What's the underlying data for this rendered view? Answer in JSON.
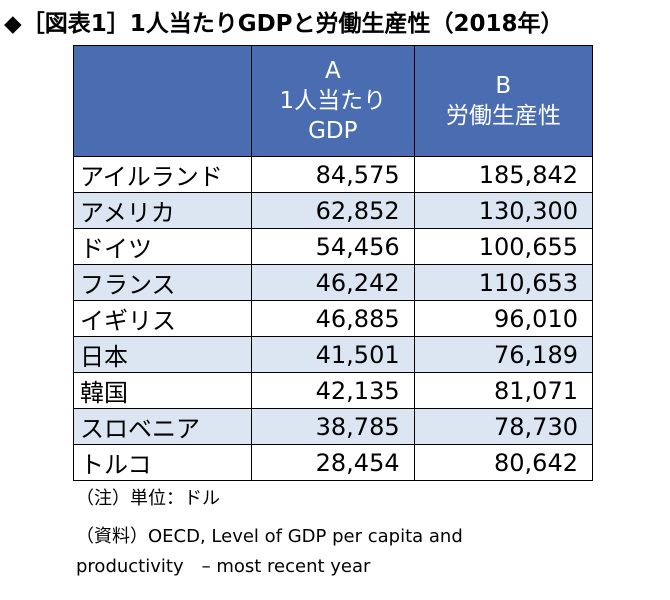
{
  "header": {
    "title": "◆［図表1］1人当たりGDPと労働生産性（2018年）"
  },
  "table": {
    "columns": [
      {
        "letter": "A",
        "label": [
          "1人当たり",
          "GDP"
        ]
      },
      {
        "letter": "B",
        "label": [
          "労働生産性"
        ]
      }
    ],
    "rows": [
      [
        "アイルランド",
        "84,575",
        "185,842"
      ],
      [
        "アメリカ",
        "62,852",
        "130,300"
      ],
      [
        "ドイツ",
        "54,456",
        "100,655"
      ],
      [
        "フランス",
        "46,242",
        "110,653"
      ],
      [
        "イギリス",
        "46,885",
        "96,010"
      ],
      [
        "日本",
        "41,501",
        "76,189"
      ],
      [
        "韓国",
        "42,135",
        "81,071"
      ],
      [
        "スロベニア",
        "38,785",
        "78,730"
      ],
      [
        "トルコ",
        "28,454",
        "80,642"
      ]
    ]
  },
  "notes": [
    "（注）単位：ドル",
    "（資料）OECD, Level of GDP per capita and productivity　– most recent year"
  ]
}
